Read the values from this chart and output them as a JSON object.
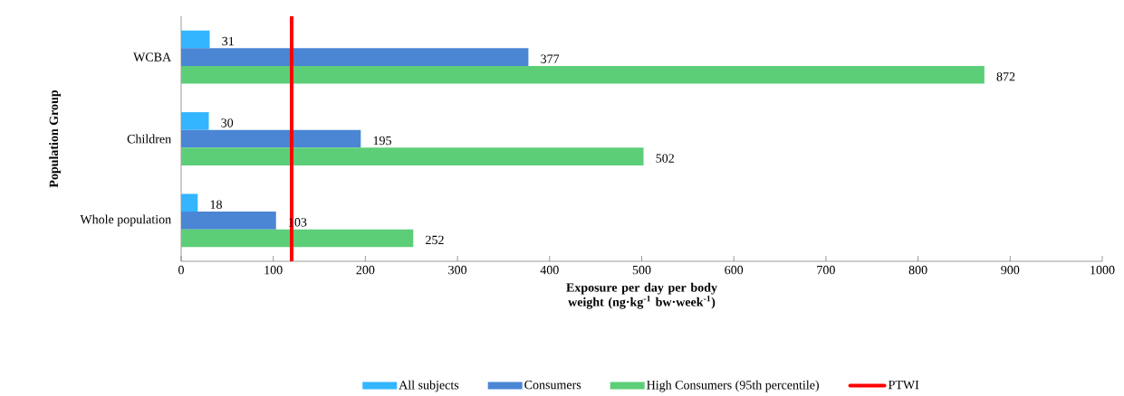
{
  "chart_data": {
    "type": "bar",
    "orientation": "horizontal",
    "xlabel": "Exposure per day per body weight (ng·kg$^{-1}$ bw·week$^{-1}$)",
    "ylabel": "Population Group",
    "categories": [
      "WCBA",
      "Children",
      "Whole population"
    ],
    "series": [
      {
        "name": "All subjects",
        "color": "#33b5ff",
        "values": [
          31,
          30,
          18
        ]
      },
      {
        "name": "Consumers",
        "color": "#4a86d4",
        "values": [
          377,
          195,
          103
        ]
      },
      {
        "name": "High Consumers (95th percentile)",
        "color": "#5dce78",
        "values": [
          872,
          502,
          252
        ]
      }
    ],
    "xlim": [
      0,
      1000
    ],
    "xticks": [
      0,
      100,
      200,
      300,
      400,
      500,
      600,
      700,
      800,
      900,
      1000
    ],
    "ref_lines": [
      {
        "axis": "x",
        "value": 120,
        "label": "PTWI",
        "color": "#ff0000"
      }
    ],
    "data_labels": true,
    "grid": false,
    "legend": "bottom"
  }
}
